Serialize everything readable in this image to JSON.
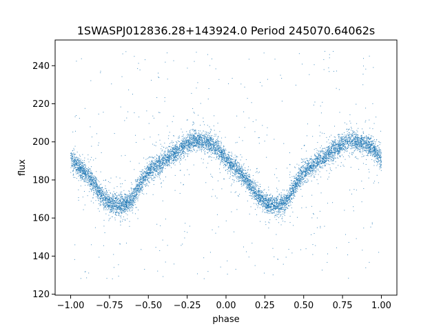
{
  "chart_data": {
    "type": "scatter",
    "title": "1SWASPJ012836.28+143924.0 Period 245070.64062s",
    "xlabel": "phase",
    "ylabel": "flux",
    "xlim": [
      -1.1,
      1.1
    ],
    "ylim": [
      119.5,
      253.5
    ],
    "x_ticks": [
      -1.0,
      -0.75,
      -0.5,
      -0.25,
      0.0,
      0.25,
      0.5,
      0.75,
      1.0
    ],
    "x_tick_labels": [
      "−1.00",
      "−0.75",
      "−0.50",
      "−0.25",
      "0.00",
      "0.25",
      "0.50",
      "0.75",
      "1.00"
    ],
    "y_ticks": [
      120,
      140,
      160,
      180,
      200,
      220,
      240
    ],
    "y_tick_labels": [
      "120",
      "140",
      "160",
      "180",
      "200",
      "220",
      "240"
    ],
    "grid": false,
    "legend": "none",
    "marker_color": "#1f77b4",
    "phase_curve": {
      "description": "folded light curve trend, shown twice (phase -1..0 and 0..1)",
      "phase": [
        0.0,
        0.05,
        0.1,
        0.15,
        0.2,
        0.25,
        0.3,
        0.35,
        0.4,
        0.45,
        0.5,
        0.55,
        0.6,
        0.65,
        0.7,
        0.75,
        0.8,
        0.85,
        0.9,
        0.95,
        1.0
      ],
      "flux": [
        191,
        187,
        183,
        178,
        172,
        168,
        167,
        167,
        170,
        178,
        184,
        187,
        190,
        193,
        196,
        199,
        201,
        200,
        199,
        196,
        191
      ],
      "scatter": 2.5,
      "outlier_range": [
        128,
        248
      ]
    },
    "n_points": 9000
  }
}
